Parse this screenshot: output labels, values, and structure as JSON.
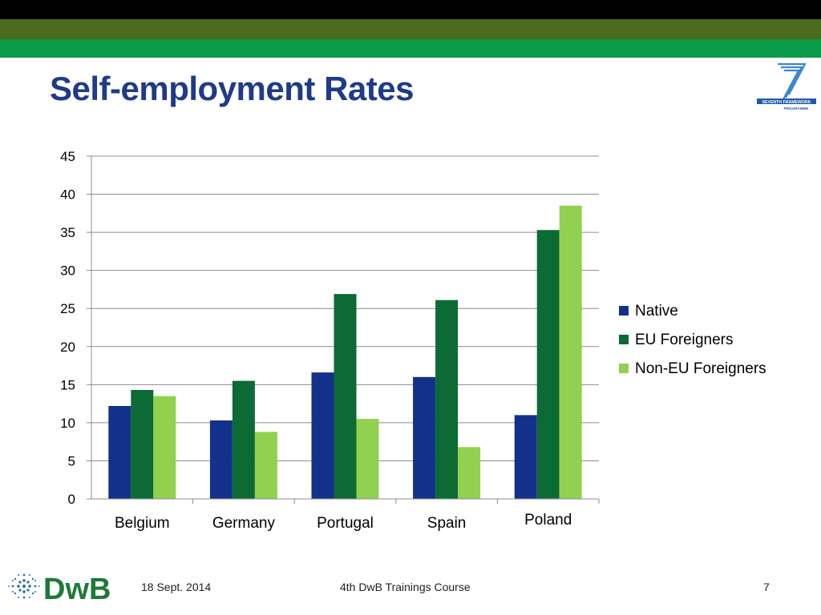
{
  "slide": {
    "title": "Self-employment Rates",
    "logo": "seventh-framework-programme-logo",
    "footer": {
      "date": "18 Sept. 2014",
      "course": "4th DwB Trainings Course",
      "page": "7",
      "logo": "dwb-logo"
    },
    "colors": {
      "title": "#1f3a8a",
      "band_black": "#000000",
      "band_olive": "#4b6b1e",
      "band_green": "#0a9a49"
    }
  },
  "chart_data": {
    "type": "bar",
    "categories": [
      "Belgium",
      "Germany",
      "Portugal",
      "Spain",
      "Poland"
    ],
    "series": [
      {
        "name": "Native",
        "color": "#13318a",
        "values": [
          12.2,
          10.3,
          16.6,
          16.0,
          11.0
        ]
      },
      {
        "name": "EU Foreigners",
        "color": "#0c6a34",
        "values": [
          14.3,
          15.5,
          26.9,
          26.1,
          35.3
        ]
      },
      {
        "name": "Non-EU Foreigners",
        "color": "#92d050",
        "values": [
          13.5,
          8.8,
          10.5,
          6.8,
          38.5
        ]
      }
    ],
    "ylim": [
      0,
      45
    ],
    "yticks": [
      "0",
      "5",
      "10",
      "15",
      "20",
      "25",
      "30",
      "35",
      "40",
      "45"
    ],
    "grid": true,
    "legend": "right"
  }
}
